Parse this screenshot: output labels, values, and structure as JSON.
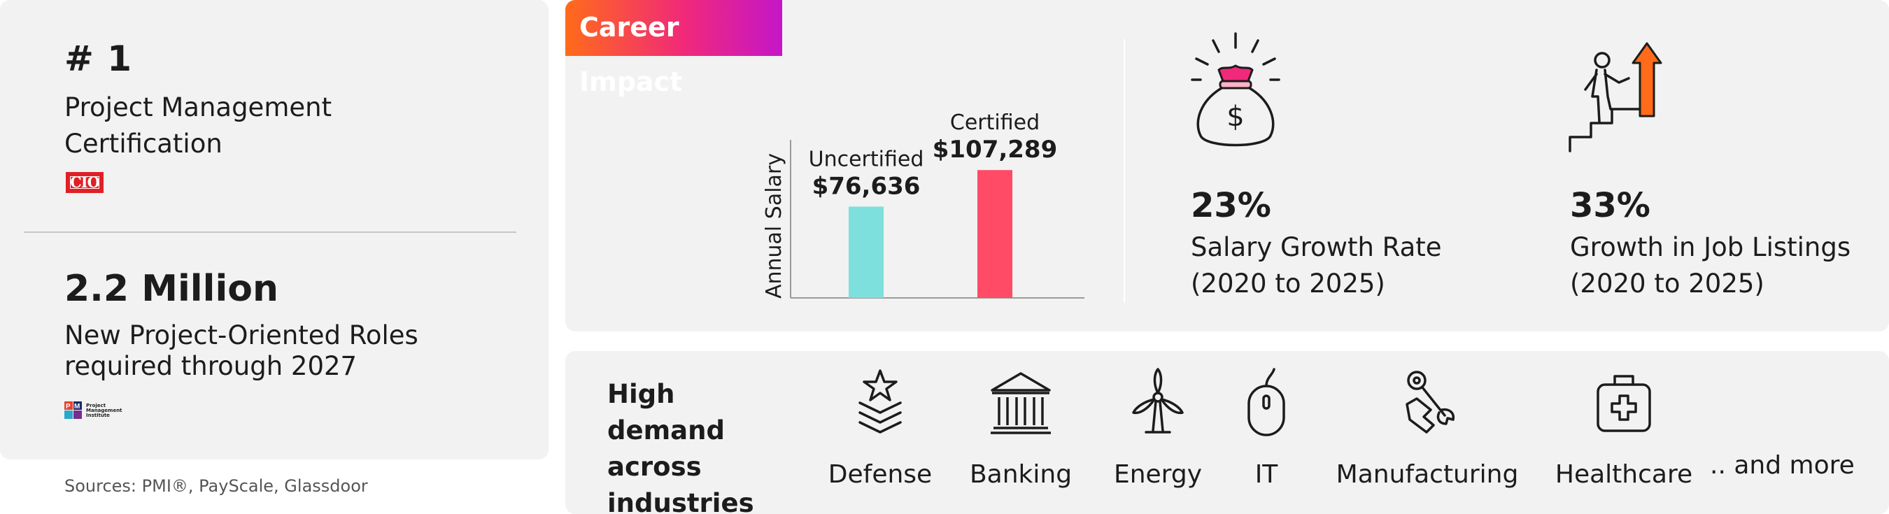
{
  "left": {
    "rank_heading": "# 1",
    "rank_text": "Project Management Certification",
    "cio_logo": "CIO",
    "roles_heading": "2.2 Million",
    "roles_text": "New Project-Oriented Roles required through 2027",
    "pmi_logo_words": [
      "Project",
      "Management",
      "Institute"
    ],
    "sources": "Sources: PMI®, PayScale, Glassdoor"
  },
  "impact": {
    "tag": "Career Impact",
    "stats": [
      {
        "percent": "23%",
        "description": "Salary Growth Rate (2020 to 2025)",
        "icon": "money-bag-icon"
      },
      {
        "percent": "33%",
        "description": "Growth in Job Listings (2020 to 2025)",
        "icon": "career-growth-stairs-icon"
      }
    ]
  },
  "chart_data": {
    "type": "bar",
    "title": "",
    "xlabel": "",
    "ylabel": "Annual Salary",
    "categories": [
      "Uncertified",
      "Certified"
    ],
    "values": [
      76636,
      107289
    ],
    "value_labels": [
      "$76,636",
      "$107,289"
    ],
    "ylim": [
      0,
      135000
    ],
    "colors": [
      "#7ee0dc",
      "#ff4b66"
    ],
    "grid": false
  },
  "industries": {
    "heading": "High demand across industries",
    "items": [
      {
        "label": "Defense",
        "icon": "star-chevron-icon"
      },
      {
        "label": "Banking",
        "icon": "bank-building-icon"
      },
      {
        "label": "Energy",
        "icon": "wind-turbine-icon"
      },
      {
        "label": "IT",
        "icon": "computer-mouse-icon"
      },
      {
        "label": "Manufacturing",
        "icon": "wrench-gear-hand-icon"
      },
      {
        "label": "Healthcare",
        "icon": "first-aid-kit-icon"
      }
    ],
    "more_label": ".. and more"
  },
  "colors": {
    "panel_bg": "#f1f2f1",
    "accent_orange": "#ff6b1a",
    "accent_magenta": "#c516c9",
    "cio_red": "#e01f26"
  }
}
